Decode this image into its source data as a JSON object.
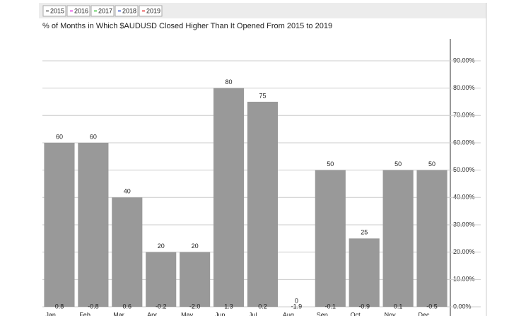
{
  "chart_data": {
    "type": "bar",
    "title": "% of Months in Which $AUDUSD Closed Higher Than It Opened From 2015 to 2019",
    "legend": [
      {
        "name": "2015",
        "color": "#555555"
      },
      {
        "name": "2016",
        "color": "#e020e0"
      },
      {
        "name": "2017",
        "color": "#30c030"
      },
      {
        "name": "2018",
        "color": "#2040c0"
      },
      {
        "name": "2019",
        "color": "#e02020"
      }
    ],
    "categories": [
      "Jan",
      "Feb",
      "Mar",
      "Apr",
      "May",
      "Jun",
      "Jul",
      "Aug",
      "Sep",
      "Oct",
      "Nov",
      "Dec"
    ],
    "values": [
      60,
      60,
      40,
      20,
      20,
      80,
      75,
      0,
      50,
      25,
      50,
      50
    ],
    "bar_footer_labels": [
      "0.8",
      "-0.8",
      "0.6",
      "-0.2",
      "-2.0",
      "1.3",
      "0.2",
      "-1.9",
      "-0.1",
      "-0.9",
      "0.1",
      "-0.5"
    ],
    "color": "#999999",
    "ylim": [
      0,
      98
    ],
    "yticks": [
      {
        "value": 0,
        "label": "0.00%"
      },
      {
        "value": 10,
        "label": "10.00%"
      },
      {
        "value": 20,
        "label": "20.00%"
      },
      {
        "value": 30,
        "label": "30.00%"
      },
      {
        "value": 40,
        "label": "40.00%"
      },
      {
        "value": 50,
        "label": "50.00%"
      },
      {
        "value": 60,
        "label": "60.00%"
      },
      {
        "value": 70,
        "label": "70.00%"
      },
      {
        "value": 80,
        "label": "80.00%"
      },
      {
        "value": 90,
        "label": "90.00%"
      }
    ],
    "grid": true
  }
}
